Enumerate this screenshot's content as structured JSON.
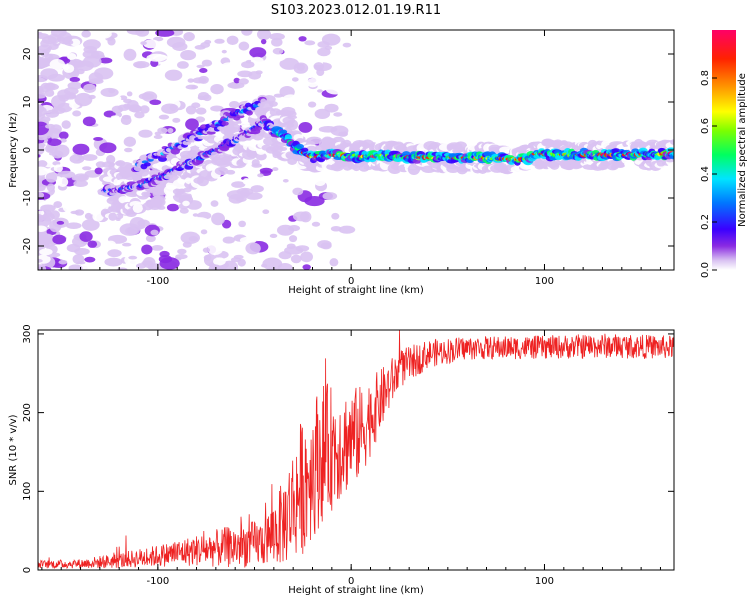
{
  "title": "S103.2023.012.01.19.R11",
  "chart_data": [
    {
      "type": "heatmap",
      "xlabel": "Height of straight line (km)",
      "ylabel": "Frequency (Hz)",
      "xlim": [
        -162,
        167
      ],
      "ylim": [
        -25,
        25
      ],
      "x_ticks": [
        -100,
        0,
        100
      ],
      "y_ticks": [
        -20,
        -10,
        0,
        10,
        20
      ],
      "colorbar": {
        "label": "Normalized spectral amplitude",
        "range": [
          0.0,
          1.0
        ],
        "ticks": [
          0.0,
          0.2,
          0.4,
          0.6,
          0.8
        ],
        "colors": [
          "#ffffff",
          "#d9c2f2",
          "#8a2be2",
          "#3a00ff",
          "#0077ff",
          "#00e5ff",
          "#00ff60",
          "#7cff00",
          "#ffff00",
          "#ff9900",
          "#ff2200",
          "#ff0066"
        ]
      },
      "ridge": [
        {
          "x": -125,
          "y": -8.5
        },
        {
          "x": -110,
          "y": -7.5
        },
        {
          "x": -100,
          "y": -6
        },
        {
          "x": -90,
          "y": -4
        },
        {
          "x": -80,
          "y": -2
        },
        {
          "x": -70,
          "y": 0
        },
        {
          "x": -60,
          "y": 2
        },
        {
          "x": -50,
          "y": 4.5
        },
        {
          "x": -45,
          "y": 6
        },
        {
          "x": -40,
          "y": 4
        },
        {
          "x": -35,
          "y": 3
        },
        {
          "x": -30,
          "y": 1
        },
        {
          "x": -25,
          "y": -0.5
        },
        {
          "x": -20,
          "y": -1.5
        },
        {
          "x": -10,
          "y": -1
        },
        {
          "x": 0,
          "y": -1.3
        },
        {
          "x": 20,
          "y": -1.3
        },
        {
          "x": 40,
          "y": -1.6
        },
        {
          "x": 70,
          "y": -1.6
        },
        {
          "x": 85,
          "y": -2
        },
        {
          "x": 92,
          "y": -1.8
        },
        {
          "x": 95,
          "y": -0.8
        },
        {
          "x": 110,
          "y": -1
        },
        {
          "x": 140,
          "y": -1
        },
        {
          "x": 167,
          "y": -0.8
        }
      ],
      "upper_branch": [
        {
          "x": -110,
          "y": -3
        },
        {
          "x": -100,
          "y": -1.5
        },
        {
          "x": -90,
          "y": 1
        },
        {
          "x": -80,
          "y": 3
        },
        {
          "x": -70,
          "y": 5
        },
        {
          "x": -60,
          "y": 7.5
        },
        {
          "x": -50,
          "y": 9
        },
        {
          "x": -45,
          "y": 10
        }
      ]
    },
    {
      "type": "line",
      "xlabel": "Height of straight line (km)",
      "ylabel": "SNR (10 * v/v)",
      "xlim": [
        -162,
        167
      ],
      "ylim": [
        0,
        305
      ],
      "x_ticks": [
        -100,
        0,
        100
      ],
      "y_ticks": [
        0,
        100,
        200,
        300
      ],
      "series": [
        {
          "name": "SNR",
          "color": "#ee2222",
          "envelope": [
            {
              "x": -162,
              "mean": 7,
              "spread": 5
            },
            {
              "x": -140,
              "mean": 8,
              "spread": 6
            },
            {
              "x": -120,
              "mean": 12,
              "spread": 10
            },
            {
              "x": -100,
              "mean": 18,
              "spread": 14
            },
            {
              "x": -80,
              "mean": 25,
              "spread": 20
            },
            {
              "x": -60,
              "mean": 30,
              "spread": 28
            },
            {
              "x": -45,
              "mean": 35,
              "spread": 30
            },
            {
              "x": -35,
              "mean": 60,
              "spread": 55
            },
            {
              "x": -25,
              "mean": 110,
              "spread": 90
            },
            {
              "x": -15,
              "mean": 150,
              "spread": 90
            },
            {
              "x": -5,
              "mean": 160,
              "spread": 70
            },
            {
              "x": 5,
              "mean": 175,
              "spread": 60
            },
            {
              "x": 15,
              "mean": 215,
              "spread": 40
            },
            {
              "x": 25,
              "mean": 255,
              "spread": 25
            },
            {
              "x": 40,
              "mean": 275,
              "spread": 18
            },
            {
              "x": 60,
              "mean": 282,
              "spread": 15
            },
            {
              "x": 100,
              "mean": 283,
              "spread": 15
            },
            {
              "x": 130,
              "mean": 285,
              "spread": 16
            },
            {
              "x": 167,
              "mean": 283,
              "spread": 15
            }
          ]
        }
      ]
    }
  ]
}
